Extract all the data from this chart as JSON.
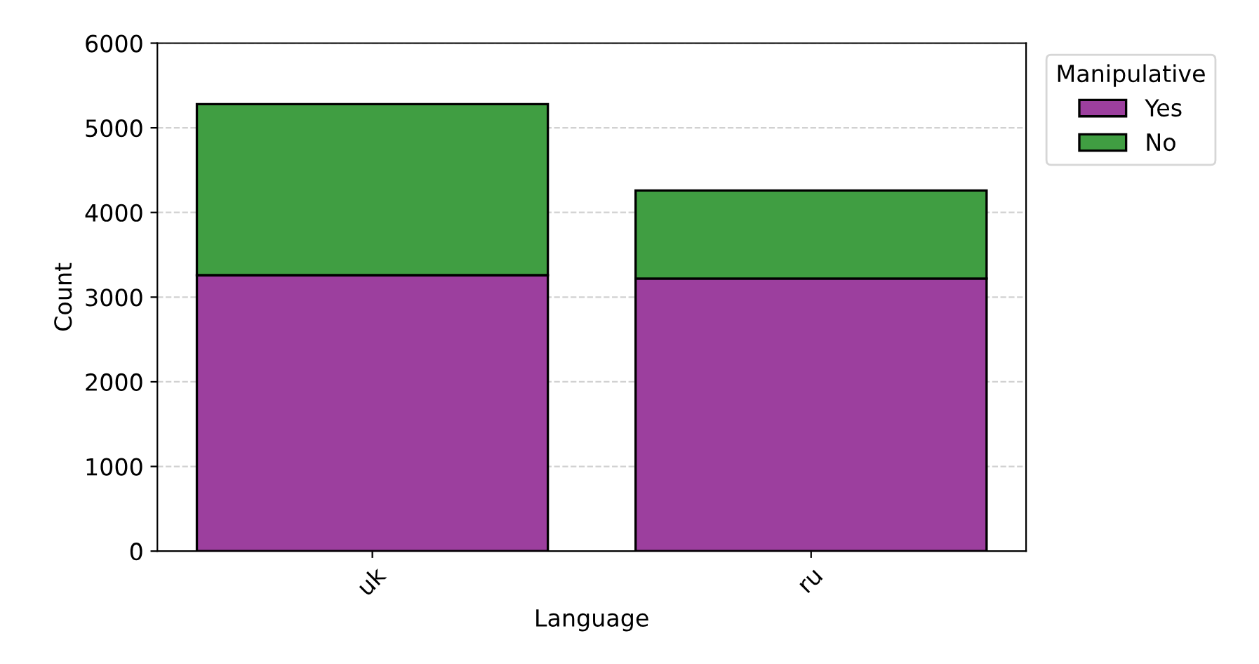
{
  "chart_data": {
    "type": "bar",
    "xlabel": "Language",
    "ylabel": "Count",
    "legend_title": "Manipulative",
    "categories": [
      "uk",
      "ru"
    ],
    "stacked": true,
    "series": [
      {
        "name": "Yes",
        "color": "#9c3f9e",
        "values": [
          3260,
          3220
        ]
      },
      {
        "name": "No",
        "color": "#409e42",
        "values": [
          2020,
          1040
        ]
      }
    ],
    "ylim": [
      0,
      6000
    ],
    "yticks": [
      0,
      1000,
      2000,
      3000,
      4000,
      5000,
      6000
    ],
    "grid": "y",
    "legend": "top right"
  }
}
